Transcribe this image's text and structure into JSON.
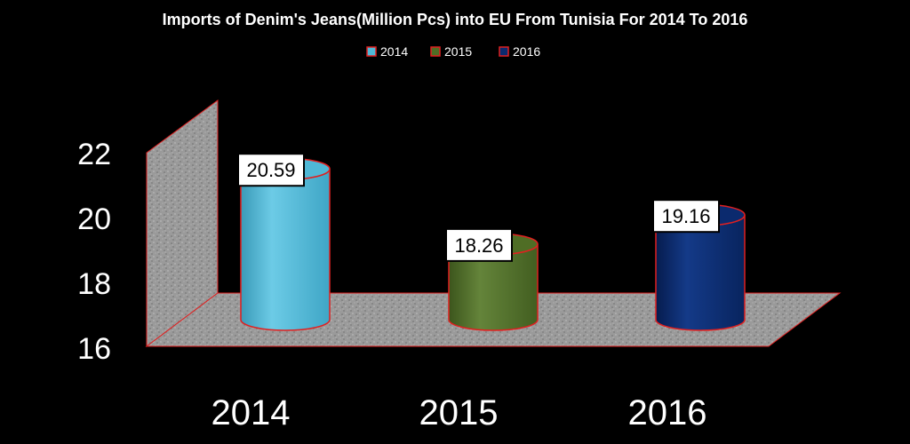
{
  "chart_data": {
    "type": "bar",
    "title": "Imports of Denim's Jeans(Million Pcs) into EU From Tunisia For 2014 To 2016",
    "xlabel": "",
    "ylabel": "",
    "categories": [
      "2014",
      "2015",
      "2016"
    ],
    "series": [
      {
        "name": "2014",
        "values": [
          20.59,
          null,
          null
        ],
        "color": "#4fb8d6"
      },
      {
        "name": "2015",
        "values": [
          null,
          18.26,
          null
        ],
        "color": "#4f6d25"
      },
      {
        "name": "2016",
        "values": [
          null,
          null,
          19.16
        ],
        "color": "#0b2a6e"
      }
    ],
    "values": [
      20.59,
      18.26,
      19.16
    ],
    "data_labels": [
      "20.59",
      "18.26",
      "19.16"
    ],
    "y_ticks": [
      "16",
      "18",
      "20",
      "22"
    ],
    "ylim": [
      16,
      22
    ],
    "grid": false,
    "legend_position": "top-center",
    "style": "3d-cylinder",
    "background": "#000000",
    "outline_color": "#e02020"
  }
}
